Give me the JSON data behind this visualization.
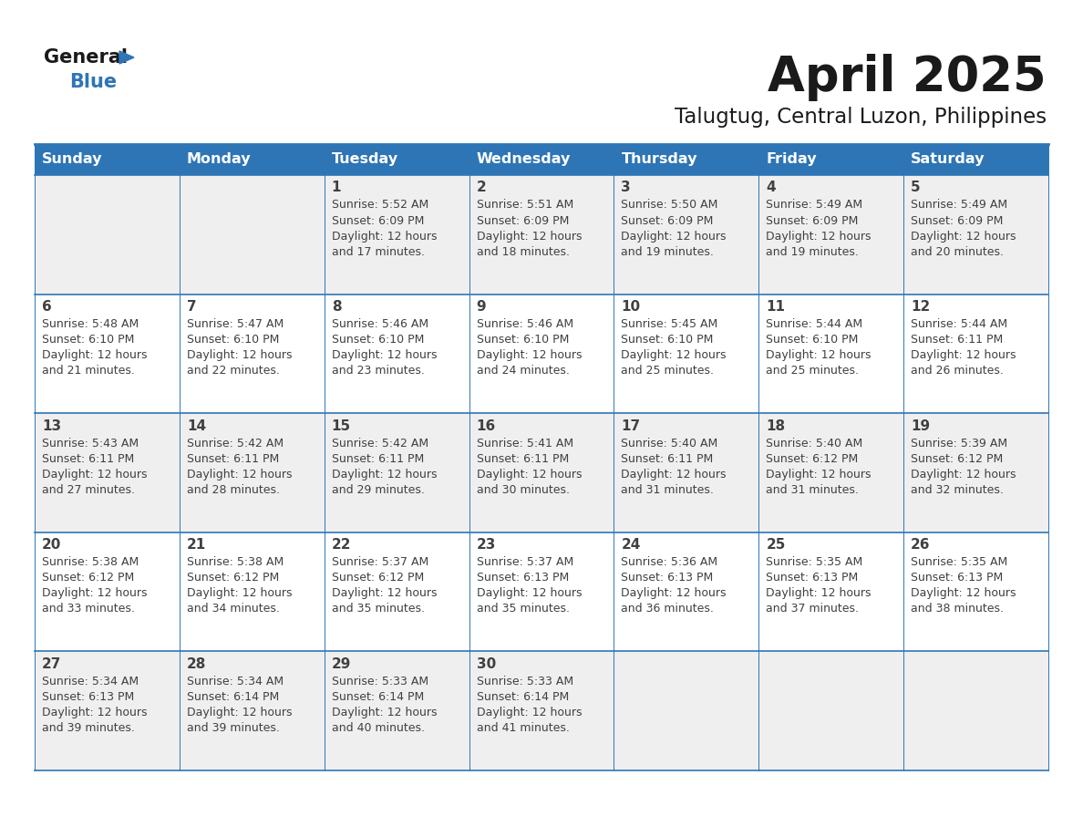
{
  "title": "April 2025",
  "subtitle": "Talugtug, Central Luzon, Philippines",
  "days_of_week": [
    "Sunday",
    "Monday",
    "Tuesday",
    "Wednesday",
    "Thursday",
    "Friday",
    "Saturday"
  ],
  "header_bg": "#2e75b6",
  "header_text": "#ffffff",
  "cell_bg_odd": "#efefef",
  "cell_bg_even": "#ffffff",
  "border_color": "#2e75b6",
  "text_color": "#404040",
  "title_color": "#1a1a1a",
  "logo_black": "#1a1a1a",
  "logo_blue": "#2e75b6",
  "calendar_data": [
    [
      null,
      null,
      {
        "day": 1,
        "sunrise": "5:52 AM",
        "sunset": "6:09 PM",
        "daylight": "12 hours and 17 minutes."
      },
      {
        "day": 2,
        "sunrise": "5:51 AM",
        "sunset": "6:09 PM",
        "daylight": "12 hours and 18 minutes."
      },
      {
        "day": 3,
        "sunrise": "5:50 AM",
        "sunset": "6:09 PM",
        "daylight": "12 hours and 19 minutes."
      },
      {
        "day": 4,
        "sunrise": "5:49 AM",
        "sunset": "6:09 PM",
        "daylight": "12 hours and 19 minutes."
      },
      {
        "day": 5,
        "sunrise": "5:49 AM",
        "sunset": "6:09 PM",
        "daylight": "12 hours and 20 minutes."
      }
    ],
    [
      {
        "day": 6,
        "sunrise": "5:48 AM",
        "sunset": "6:10 PM",
        "daylight": "12 hours and 21 minutes."
      },
      {
        "day": 7,
        "sunrise": "5:47 AM",
        "sunset": "6:10 PM",
        "daylight": "12 hours and 22 minutes."
      },
      {
        "day": 8,
        "sunrise": "5:46 AM",
        "sunset": "6:10 PM",
        "daylight": "12 hours and 23 minutes."
      },
      {
        "day": 9,
        "sunrise": "5:46 AM",
        "sunset": "6:10 PM",
        "daylight": "12 hours and 24 minutes."
      },
      {
        "day": 10,
        "sunrise": "5:45 AM",
        "sunset": "6:10 PM",
        "daylight": "12 hours and 25 minutes."
      },
      {
        "day": 11,
        "sunrise": "5:44 AM",
        "sunset": "6:10 PM",
        "daylight": "12 hours and 25 minutes."
      },
      {
        "day": 12,
        "sunrise": "5:44 AM",
        "sunset": "6:11 PM",
        "daylight": "12 hours and 26 minutes."
      }
    ],
    [
      {
        "day": 13,
        "sunrise": "5:43 AM",
        "sunset": "6:11 PM",
        "daylight": "12 hours and 27 minutes."
      },
      {
        "day": 14,
        "sunrise": "5:42 AM",
        "sunset": "6:11 PM",
        "daylight": "12 hours and 28 minutes."
      },
      {
        "day": 15,
        "sunrise": "5:42 AM",
        "sunset": "6:11 PM",
        "daylight": "12 hours and 29 minutes."
      },
      {
        "day": 16,
        "sunrise": "5:41 AM",
        "sunset": "6:11 PM",
        "daylight": "12 hours and 30 minutes."
      },
      {
        "day": 17,
        "sunrise": "5:40 AM",
        "sunset": "6:11 PM",
        "daylight": "12 hours and 31 minutes."
      },
      {
        "day": 18,
        "sunrise": "5:40 AM",
        "sunset": "6:12 PM",
        "daylight": "12 hours and 31 minutes."
      },
      {
        "day": 19,
        "sunrise": "5:39 AM",
        "sunset": "6:12 PM",
        "daylight": "12 hours and 32 minutes."
      }
    ],
    [
      {
        "day": 20,
        "sunrise": "5:38 AM",
        "sunset": "6:12 PM",
        "daylight": "12 hours and 33 minutes."
      },
      {
        "day": 21,
        "sunrise": "5:38 AM",
        "sunset": "6:12 PM",
        "daylight": "12 hours and 34 minutes."
      },
      {
        "day": 22,
        "sunrise": "5:37 AM",
        "sunset": "6:12 PM",
        "daylight": "12 hours and 35 minutes."
      },
      {
        "day": 23,
        "sunrise": "5:37 AM",
        "sunset": "6:13 PM",
        "daylight": "12 hours and 35 minutes."
      },
      {
        "day": 24,
        "sunrise": "5:36 AM",
        "sunset": "6:13 PM",
        "daylight": "12 hours and 36 minutes."
      },
      {
        "day": 25,
        "sunrise": "5:35 AM",
        "sunset": "6:13 PM",
        "daylight": "12 hours and 37 minutes."
      },
      {
        "day": 26,
        "sunrise": "5:35 AM",
        "sunset": "6:13 PM",
        "daylight": "12 hours and 38 minutes."
      }
    ],
    [
      {
        "day": 27,
        "sunrise": "5:34 AM",
        "sunset": "6:13 PM",
        "daylight": "12 hours and 39 minutes."
      },
      {
        "day": 28,
        "sunrise": "5:34 AM",
        "sunset": "6:14 PM",
        "daylight": "12 hours and 39 minutes."
      },
      {
        "day": 29,
        "sunrise": "5:33 AM",
        "sunset": "6:14 PM",
        "daylight": "12 hours and 40 minutes."
      },
      {
        "day": 30,
        "sunrise": "5:33 AM",
        "sunset": "6:14 PM",
        "daylight": "12 hours and 41 minutes."
      },
      null,
      null,
      null
    ]
  ]
}
